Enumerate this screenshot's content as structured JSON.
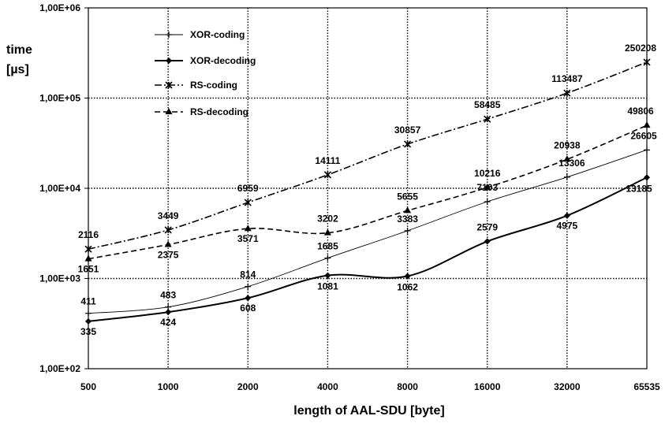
{
  "chart_data": {
    "type": "line",
    "title": "",
    "xlabel": "length of AAL-SDU [byte]",
    "ylabel": [
      "time",
      "[µs]"
    ],
    "y_scale": "log",
    "ylim": [
      100,
      1000000
    ],
    "y_ticks": [
      {
        "value": 100,
        "label": "1,00E+02"
      },
      {
        "value": 1000,
        "label": "1,00E+03"
      },
      {
        "value": 10000,
        "label": "1,00E+04"
      },
      {
        "value": 100000,
        "label": "1,00E+05"
      },
      {
        "value": 1000000,
        "label": "1,00E+06"
      }
    ],
    "categories": [
      "500",
      "1000",
      "2000",
      "4000",
      "8000",
      "16000",
      "32000",
      "65535"
    ],
    "grid": true,
    "legend_position": "top-left",
    "series": [
      {
        "name": "XOR-coding",
        "values": [
          411,
          483,
          814,
          1685,
          3383,
          7103,
          13306,
          26605
        ],
        "labels": [
          "411",
          "483",
          "814",
          "1685",
          "3383",
          "7103",
          "13306",
          "26605"
        ]
      },
      {
        "name": "XOR-decoding",
        "values": [
          335,
          424,
          608,
          1081,
          1062,
          2579,
          4975,
          13185
        ],
        "labels": [
          "335",
          "424",
          "608",
          "1081",
          "1062",
          "2579",
          "4975",
          "13185"
        ]
      },
      {
        "name": "RS-coding",
        "values": [
          2116,
          3449,
          6959,
          14111,
          30857,
          58485,
          113487,
          250208
        ],
        "labels": [
          "2116",
          "3449",
          "6959",
          "14111",
          "30857",
          "58485",
          "113487",
          "250208"
        ]
      },
      {
        "name": "RS-decoding",
        "values": [
          1651,
          2375,
          3571,
          3202,
          5655,
          10216,
          20938,
          49806
        ],
        "labels": [
          "1651",
          "2375",
          "3571",
          "3202",
          "5655",
          "10216",
          "20938",
          "49806"
        ]
      }
    ]
  }
}
